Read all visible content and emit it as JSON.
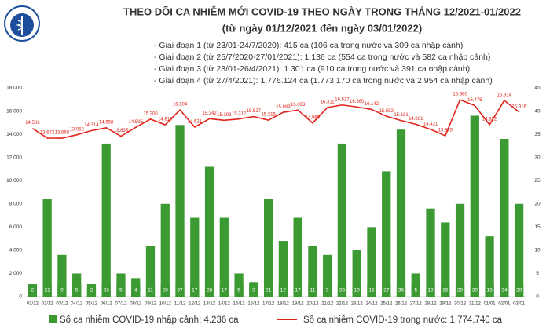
{
  "chart_data": {
    "type": "bar-line",
    "title": "THEO DÕI CA NHIỄM MỚI COVID-19 THEO NGÀY TRONG THÁNG 12/2021-01/2022",
    "subtitle": "(từ ngày 01/12/2021 đến ngày 03/01/2022)",
    "annotations": [
      "- Giai đoạn 1 (từ 23/01-24/7/2020): 415 ca (106 ca trong nước và 309 ca nhập cảnh)",
      "- Giai đoạn 2 (từ 25/7/2020-27/01/2021): 1.136 ca (554 ca trong nước và 582 ca nhập cảnh)",
      "- Giai đoạn 3 (từ 28/01-26/4/2021): 1.301 ca (910 ca trong nước và 391 ca nhập cảnh)",
      "- Giai đoạn 4 (từ 27/4/2021): 1.776.124 ca (1.773.170 ca trong nước và 2.954 ca nhập cảnh)"
    ],
    "categories": [
      "01/12",
      "02/12",
      "03/12",
      "04/12",
      "05/12",
      "06/12",
      "07/12",
      "08/12",
      "09/12",
      "10/12",
      "11/12",
      "12/12",
      "13/12",
      "14/12",
      "15/12",
      "16/12",
      "17/12",
      "18/12",
      "19/12",
      "20/12",
      "21/12",
      "22/12",
      "23/12",
      "24/12",
      "25/12",
      "26/12",
      "27/12",
      "28/12",
      "29/12",
      "30/12",
      "31/12",
      "01/01",
      "02/01",
      "03/01"
    ],
    "series": [
      {
        "name": "Số ca nhiễm COVID-19 nhập cảnh: 4.236 ca",
        "color": "#3c9a32",
        "axis": "y2",
        "values": [
          2,
          21,
          9,
          5,
          2,
          33,
          5,
          4,
          11,
          20,
          37,
          17,
          28,
          17,
          5,
          3,
          21,
          12,
          17,
          11,
          9,
          33,
          10,
          15,
          27,
          36,
          5,
          19,
          16,
          20,
          39,
          13,
          34,
          20
        ]
      },
      {
        "name": "Số ca nhiễm COVID-19 trong nước: 1.774.740 ca",
        "color": "#e2231a",
        "axis": "y",
        "values": [
          14506,
          13672,
          13668,
          13952,
          14314,
          14558,
          13835,
          14595,
          15300,
          14819,
          16104,
          14621,
          15342,
          15203,
          15312,
          15527,
          15215,
          15889,
          16093,
          14966,
          16311,
          16527,
          16360,
          16142,
          15552,
          15181,
          14861,
          14421,
          13873,
          16980,
          16476,
          14822,
          16914,
          15916
        ],
        "value_labels": [
          "14.506",
          "13.672",
          "13.668",
          "13.952",
          "14.314",
          "14.558",
          "13.835",
          "14.595",
          "15.300",
          "14.819",
          "16.104",
          "14.621",
          "15.342",
          "15.203",
          "15.312",
          "15.527",
          "15.215",
          "15.889",
          "16.093",
          "14.966",
          "16.311",
          "16.527",
          "16.360",
          "16.142",
          "15.552",
          "15.181",
          "14.861",
          "14.421",
          "13.873",
          "16.980",
          "16.476",
          "14.822",
          "16.914",
          "15.916"
        ]
      }
    ],
    "ylim": [
      0,
      18000
    ],
    "yticks": [
      0,
      {
        "value": 2000,
        "label": "2.000"
      },
      {
        "value": 4000,
        "label": "4.000"
      },
      {
        "value": 6000,
        "label": "6.000"
      },
      {
        "value": 8000,
        "label": "8.000"
      },
      {
        "value": 10000,
        "label": "10.000"
      },
      {
        "value": 12000,
        "label": "12.000"
      },
      {
        "value": 14000,
        "label": "14.000"
      },
      {
        "value": 16000,
        "label": "16.000"
      },
      {
        "value": 18000,
        "label": "18.000"
      }
    ],
    "y2lim": [
      0,
      45
    ],
    "y2ticks": [
      0,
      5,
      10,
      15,
      20,
      25,
      30,
      35,
      40,
      45
    ]
  }
}
